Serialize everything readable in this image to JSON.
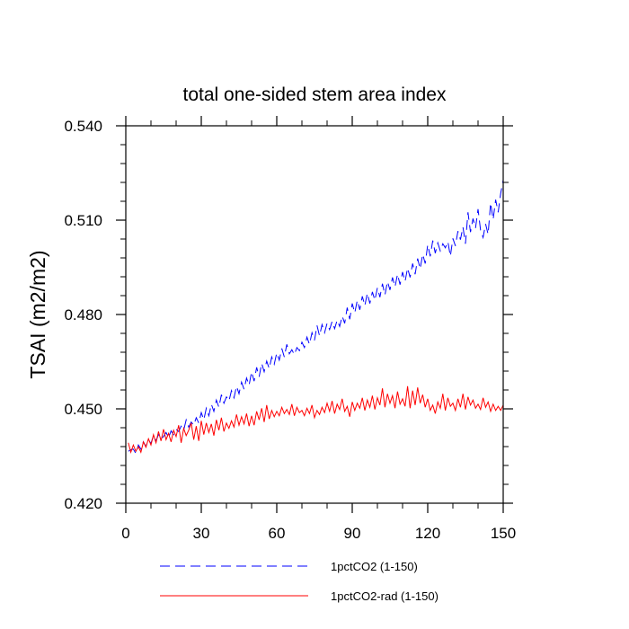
{
  "chart_data": {
    "type": "line",
    "title": "total one-sided stem area index",
    "xlabel": "",
    "ylabel": "TSAI  (m2/m2)",
    "xlim": [
      0,
      150
    ],
    "ylim": [
      0.42,
      0.54
    ],
    "x_ticks": [
      0,
      30,
      60,
      90,
      120,
      150
    ],
    "x_tick_labels": [
      "0",
      "30",
      "60",
      "90",
      "120",
      "150"
    ],
    "y_ticks": [
      0.42,
      0.45,
      0.48,
      0.51,
      0.54
    ],
    "y_tick_labels": [
      "0.420",
      "0.450",
      "0.480",
      "0.510",
      "0.540"
    ],
    "grid": false,
    "legend_position": "bottom",
    "series": [
      {
        "name": "1pctCO2 (1-150)",
        "color": "#0000ff",
        "dash": "dashed",
        "x_start": 1,
        "values": [
          0.4365,
          0.437,
          0.4372,
          0.4358,
          0.4385,
          0.4372,
          0.4395,
          0.438,
          0.4402,
          0.439,
          0.4415,
          0.4398,
          0.4418,
          0.4405,
          0.4412,
          0.4425,
          0.4408,
          0.443,
          0.4418,
          0.4435,
          0.4428,
          0.4445,
          0.4432,
          0.4465,
          0.4442,
          0.4458,
          0.4448,
          0.4472,
          0.4455,
          0.4488,
          0.4465,
          0.4502,
          0.4478,
          0.4515,
          0.4492,
          0.4528,
          0.4505,
          0.4545,
          0.4518,
          0.4538,
          0.4525,
          0.4558,
          0.4535,
          0.4572,
          0.4548,
          0.4585,
          0.4562,
          0.4598,
          0.4575,
          0.4618,
          0.4588,
          0.4632,
          0.4602,
          0.4645,
          0.4618,
          0.4652,
          0.4628,
          0.4665,
          0.4642,
          0.4678,
          0.4655,
          0.4692,
          0.4665,
          0.4705,
          0.4675,
          0.4688,
          0.4672,
          0.4695,
          0.4685,
          0.4712,
          0.4695,
          0.4728,
          0.4705,
          0.4742,
          0.4718,
          0.4765,
          0.4732,
          0.4768,
          0.4742,
          0.4772,
          0.4752,
          0.4778,
          0.4755,
          0.4782,
          0.4762,
          0.4795,
          0.4772,
          0.4822,
          0.4785,
          0.4835,
          0.4805,
          0.4845,
          0.4815,
          0.4858,
          0.4828,
          0.4868,
          0.4835,
          0.4872,
          0.4845,
          0.4885,
          0.4855,
          0.4898,
          0.4862,
          0.4905,
          0.4878,
          0.4918,
          0.4888,
          0.4928,
          0.4895,
          0.4935,
          0.4905,
          0.4948,
          0.4918,
          0.4962,
          0.4928,
          0.4978,
          0.4945,
          0.4992,
          0.4962,
          0.5022,
          0.4985,
          0.5035,
          0.4995,
          0.5028,
          0.5002,
          0.5025,
          0.5012,
          0.5032,
          0.4985,
          0.5042,
          0.5018,
          0.5065,
          0.5038,
          0.5078,
          0.5025,
          0.5125,
          0.5062,
          0.5105,
          0.5075,
          0.5135,
          0.5068,
          0.5045,
          0.5088,
          0.5055,
          0.5155,
          0.5102,
          0.5165,
          0.5125,
          0.5185,
          0.5228
        ]
      },
      {
        "name": "1pctCO2-rad (1-150)",
        "color": "#ff0000",
        "dash": "solid",
        "x_start": 1,
        "values": [
          0.4392,
          0.4362,
          0.4385,
          0.4365,
          0.438,
          0.4362,
          0.4395,
          0.4378,
          0.4405,
          0.4385,
          0.4418,
          0.4392,
          0.4428,
          0.4398,
          0.4435,
          0.4402,
          0.4422,
          0.4395,
          0.4432,
          0.4412,
          0.4448,
          0.4392,
          0.4438,
          0.4415,
          0.4432,
          0.4455,
          0.4402,
          0.4445,
          0.4398,
          0.4462,
          0.4418,
          0.4455,
          0.4425,
          0.4452,
          0.4415,
          0.4465,
          0.4432,
          0.4472,
          0.4428,
          0.4455,
          0.4438,
          0.4462,
          0.4442,
          0.4482,
          0.4448,
          0.4475,
          0.4452,
          0.4485,
          0.4445,
          0.4478,
          0.4448,
          0.4492,
          0.4465,
          0.4502,
          0.4458,
          0.4512,
          0.4468,
          0.4495,
          0.4475,
          0.4492,
          0.4478,
          0.4505,
          0.4485,
          0.4498,
          0.4482,
          0.4515,
          0.4478,
          0.4505,
          0.4488,
          0.4495,
          0.4478,
          0.4502,
          0.4485,
          0.4512,
          0.4472,
          0.4495,
          0.4482,
          0.4505,
          0.4488,
          0.4518,
          0.4492,
          0.4525,
          0.4485,
          0.4515,
          0.4498,
          0.4532,
          0.4492,
          0.4508,
          0.4475,
          0.4522,
          0.4495,
          0.4518,
          0.4502,
          0.4535,
          0.4495,
          0.4528,
          0.4505,
          0.4542,
          0.4498,
          0.4535,
          0.4512,
          0.4565,
          0.4505,
          0.4548,
          0.4518,
          0.4542,
          0.4502,
          0.4555,
          0.4515,
          0.4532,
          0.4508,
          0.4572,
          0.4502,
          0.4558,
          0.4512,
          0.4568,
          0.4518,
          0.4545,
          0.4505,
          0.4532,
          0.4495,
          0.4512,
          0.4485,
          0.4522,
          0.4502,
          0.4548,
          0.4495,
          0.4535,
          0.4508,
          0.4518,
          0.4495,
          0.4532,
          0.4505,
          0.4548,
          0.4498,
          0.4538,
          0.4512,
          0.4528,
          0.4502,
          0.4515,
          0.4498,
          0.4535,
          0.4505,
          0.4522,
          0.4492,
          0.4515,
          0.4495,
          0.4508,
          0.4495,
          0.4512
        ]
      }
    ]
  }
}
